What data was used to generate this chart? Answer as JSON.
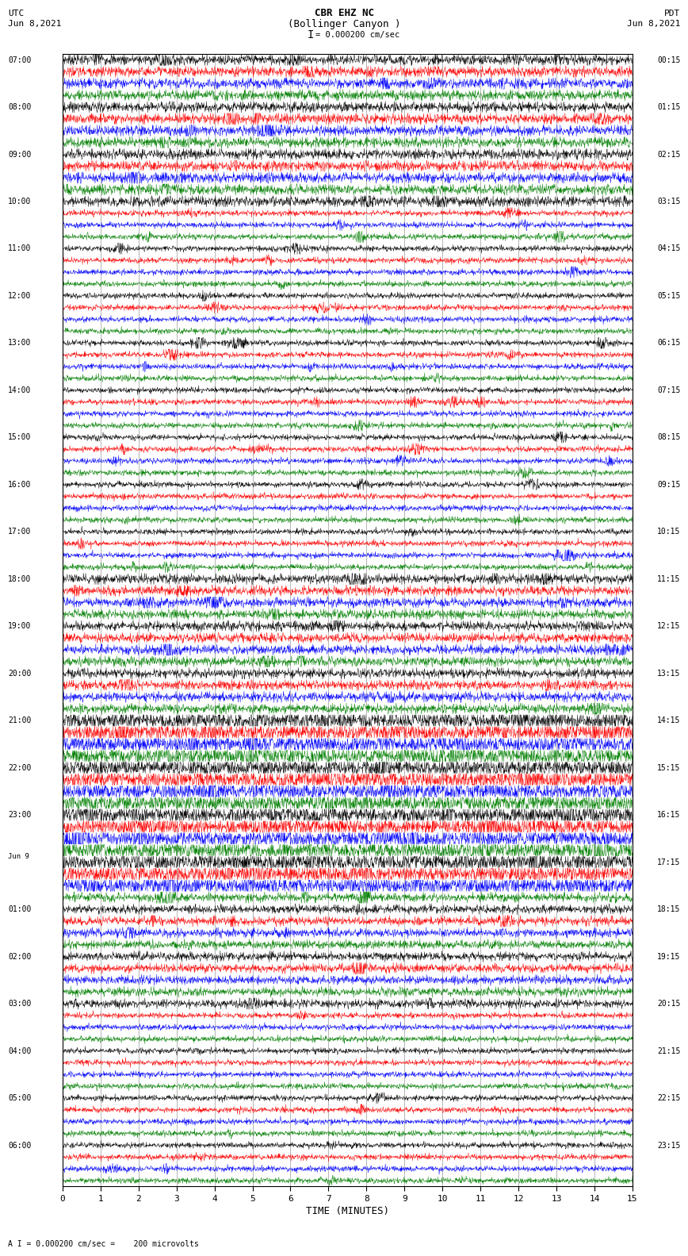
{
  "title_line1": "CBR EHZ NC",
  "title_line2": "(Bollinger Canyon )",
  "scale_label": "I = 0.000200 cm/sec",
  "bottom_label": "A I = 0.000200 cm/sec =    200 microvolts",
  "utc_label": "UTC",
  "utc_date": "Jun 8,2021",
  "pdt_label": "PDT",
  "pdt_date": "Jun 8,2021",
  "xlabel": "TIME (MINUTES)",
  "xlim": [
    0,
    15
  ],
  "xticks": [
    0,
    1,
    2,
    3,
    4,
    5,
    6,
    7,
    8,
    9,
    10,
    11,
    12,
    13,
    14,
    15
  ],
  "colors_cycle": [
    "black",
    "red",
    "blue",
    "green"
  ],
  "num_traces": 96,
  "left_times_utc": [
    "07:00",
    "",
    "",
    "",
    "08:00",
    "",
    "",
    "",
    "09:00",
    "",
    "",
    "",
    "10:00",
    "",
    "",
    "",
    "11:00",
    "",
    "",
    "",
    "12:00",
    "",
    "",
    "",
    "13:00",
    "",
    "",
    "",
    "14:00",
    "",
    "",
    "",
    "15:00",
    "",
    "",
    "",
    "16:00",
    "",
    "",
    "",
    "17:00",
    "",
    "",
    "",
    "18:00",
    "",
    "",
    "",
    "19:00",
    "",
    "",
    "",
    "20:00",
    "",
    "",
    "",
    "21:00",
    "",
    "",
    "",
    "22:00",
    "",
    "",
    "",
    "23:00",
    "",
    "",
    "",
    "Jun 9",
    "",
    "",
    "",
    "01:00",
    "",
    "",
    "",
    "02:00",
    "",
    "",
    "",
    "03:00",
    "",
    "",
    "",
    "04:00",
    "",
    "",
    "",
    "05:00",
    "",
    "",
    "",
    "06:00",
    "",
    "",
    ""
  ],
  "right_times_pdt": [
    "00:15",
    "",
    "",
    "",
    "01:15",
    "",
    "",
    "",
    "02:15",
    "",
    "",
    "",
    "03:15",
    "",
    "",
    "",
    "04:15",
    "",
    "",
    "",
    "05:15",
    "",
    "",
    "",
    "06:15",
    "",
    "",
    "",
    "07:15",
    "",
    "",
    "",
    "08:15",
    "",
    "",
    "",
    "09:15",
    "",
    "",
    "",
    "10:15",
    "",
    "",
    "",
    "11:15",
    "",
    "",
    "",
    "12:15",
    "",
    "",
    "",
    "13:15",
    "",
    "",
    "",
    "14:15",
    "",
    "",
    "",
    "15:15",
    "",
    "",
    "",
    "16:15",
    "",
    "",
    "",
    "17:15",
    "",
    "",
    "",
    "18:15",
    "",
    "",
    "",
    "19:15",
    "",
    "",
    "",
    "20:15",
    "",
    "",
    "",
    "21:15",
    "",
    "",
    "",
    "22:15",
    "",
    "",
    "",
    "23:15",
    "",
    "",
    ""
  ],
  "background_color": "white",
  "grid_color": "#999999",
  "trace_linewidth": 0.35
}
